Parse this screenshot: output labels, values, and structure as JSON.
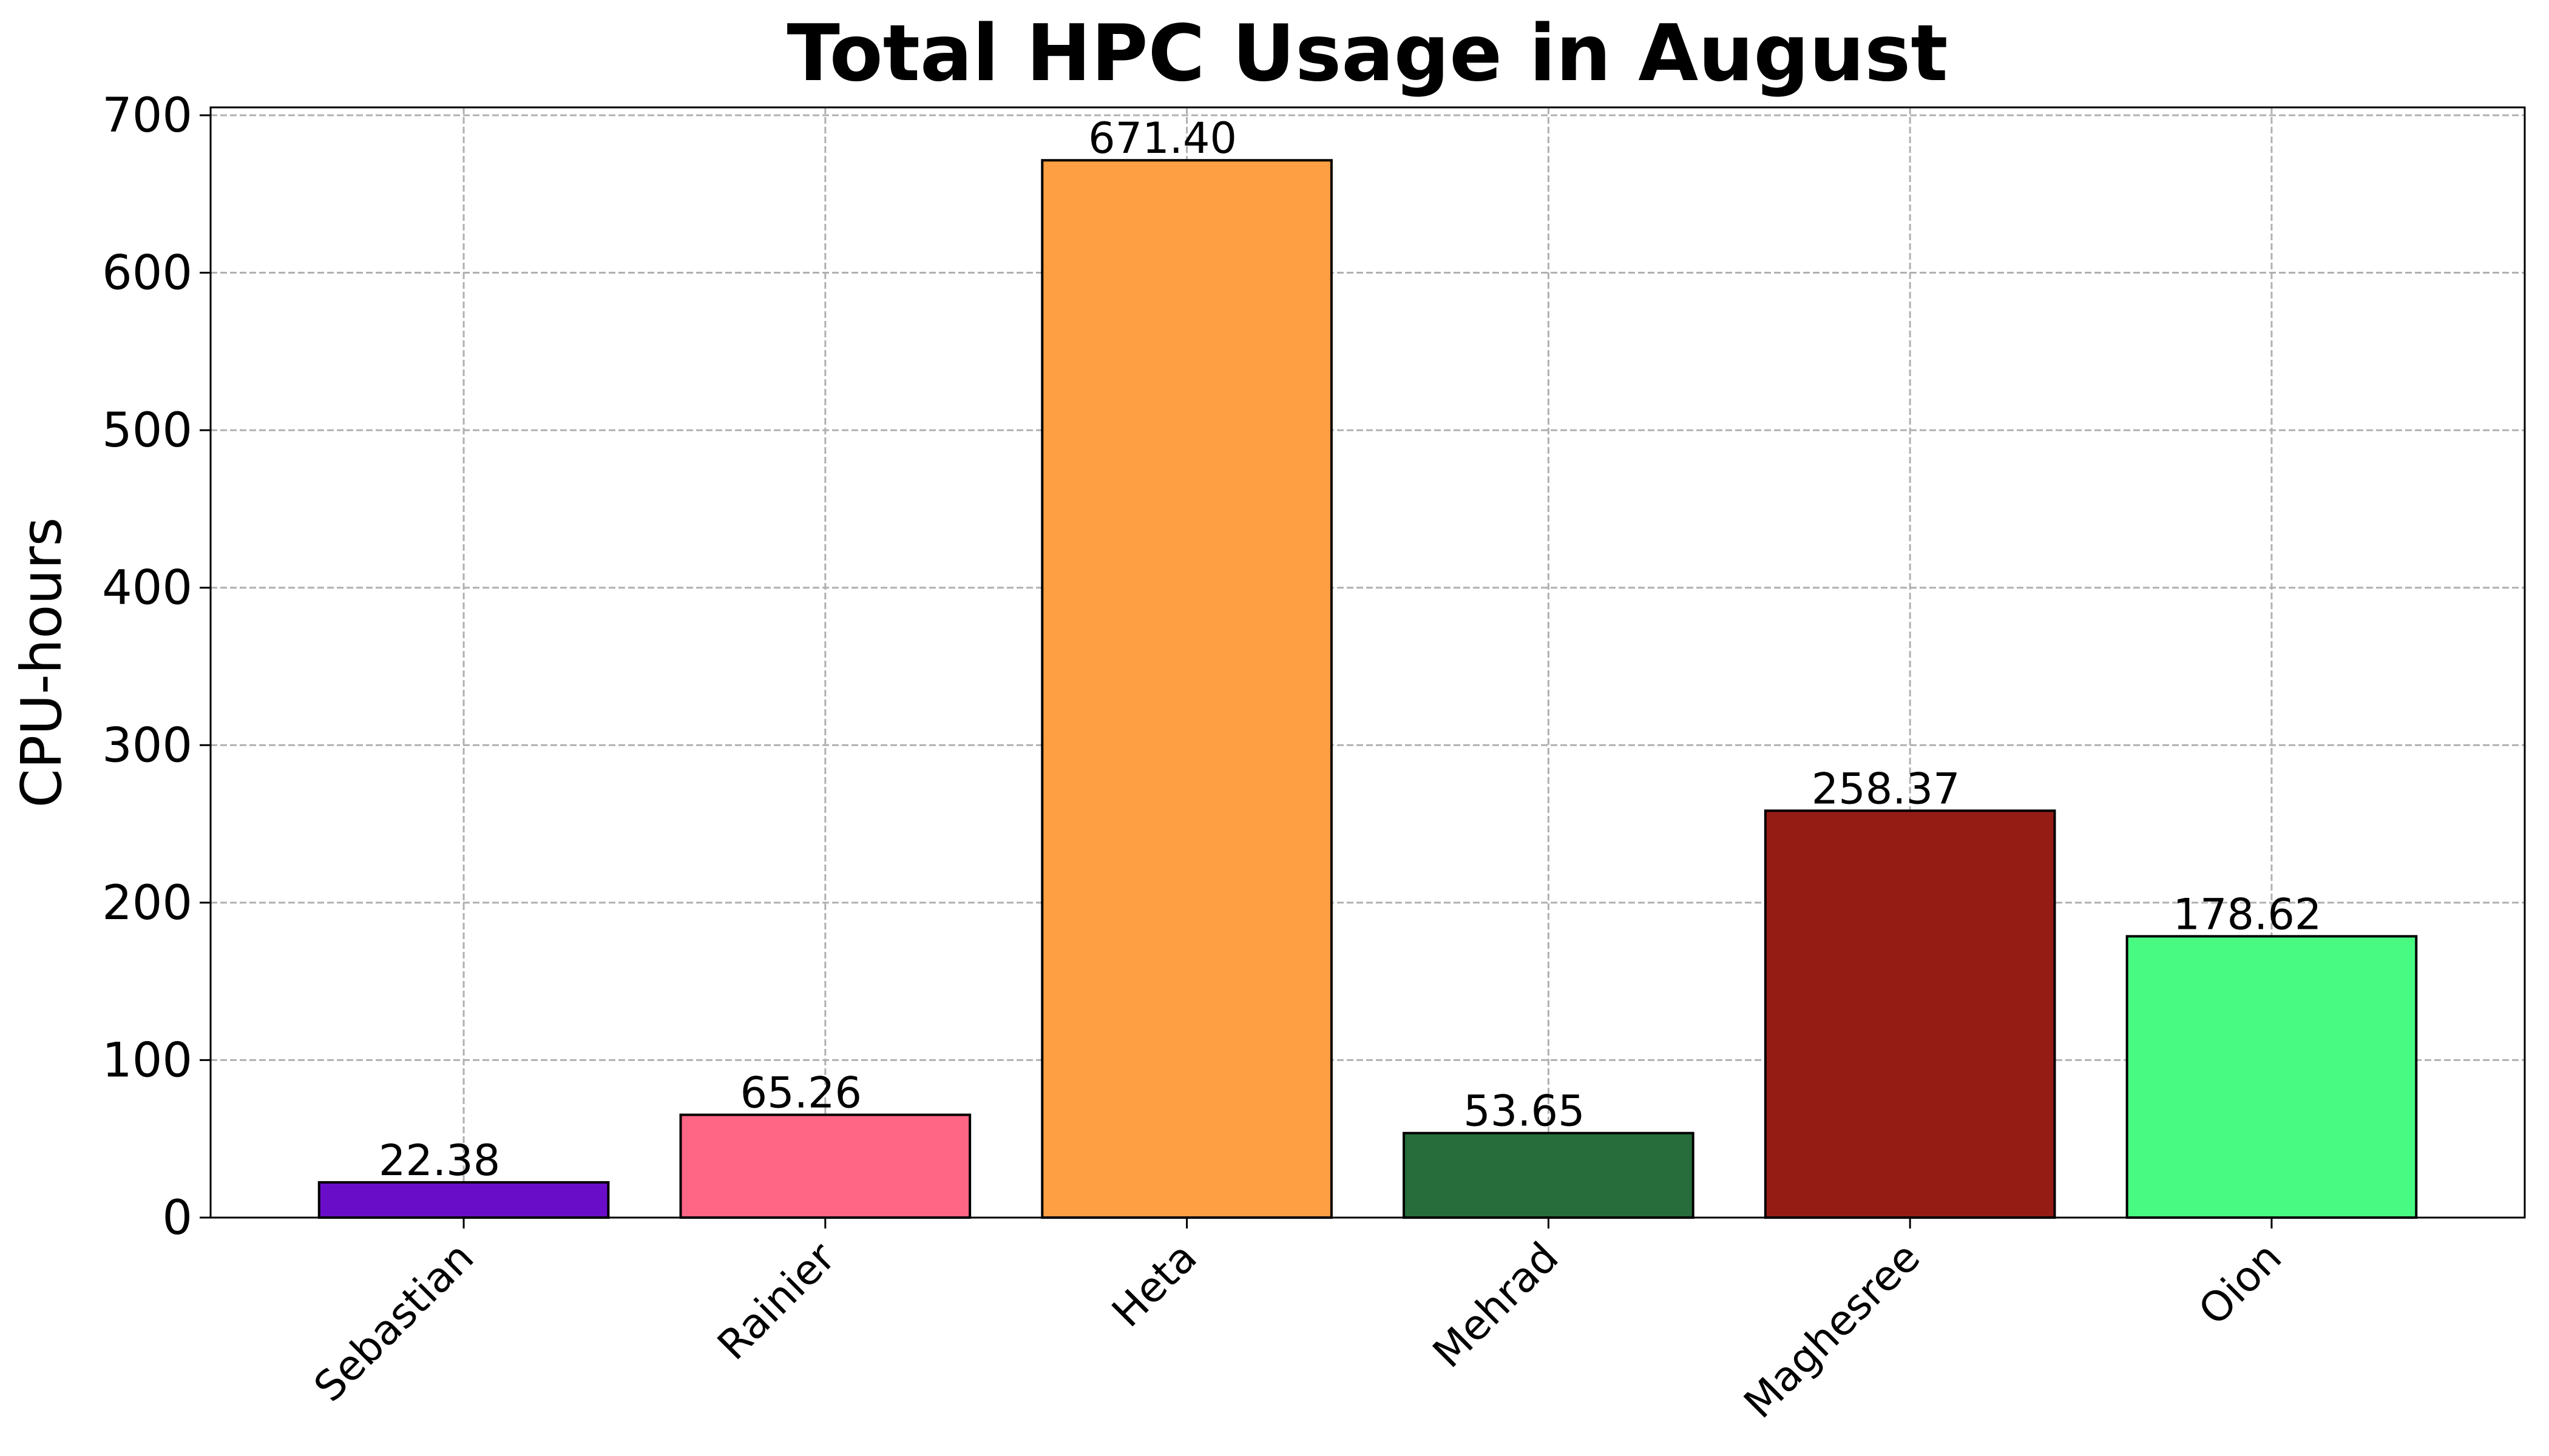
{
  "chart_data": {
    "type": "bar",
    "title": "Total HPC Usage in August",
    "xlabel": "",
    "ylabel": "CPU-hours",
    "categories": [
      "Sebastian",
      "Rainier",
      "Heta",
      "Mehrad",
      "Maghesree",
      "Oion"
    ],
    "values": [
      22.38,
      65.26,
      671.4,
      53.65,
      258.37,
      178.62
    ],
    "value_labels": [
      "22.38",
      "65.26",
      "671.40",
      "53.65",
      "258.37",
      "178.62"
    ],
    "colors": [
      "#6a0dc8",
      "#ff6585",
      "#ff9f43",
      "#266d3b",
      "#951c15",
      "#48fa81"
    ],
    "ylim": [
      0,
      705
    ],
    "yticks": [
      0,
      100,
      200,
      300,
      400,
      500,
      600,
      700
    ],
    "grid": true,
    "legend": "none"
  }
}
